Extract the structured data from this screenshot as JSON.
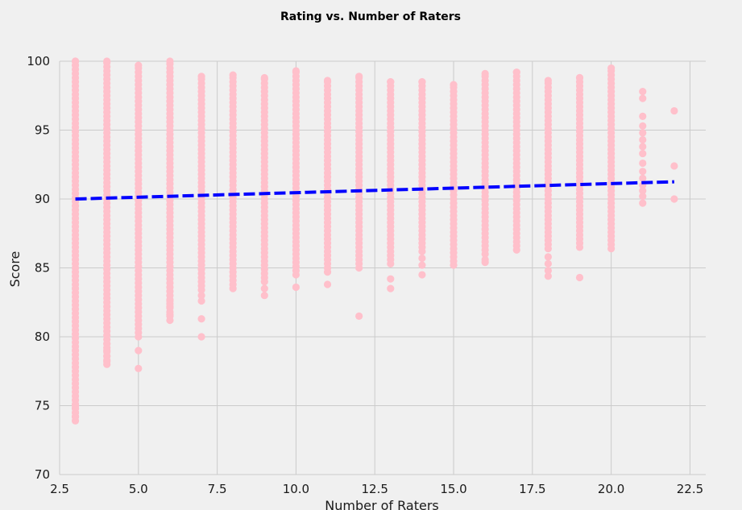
{
  "chart_data": {
    "type": "scatter",
    "title": "Rating vs. Number of Raters",
    "xlabel": "Number of Raters",
    "ylabel": "Score",
    "xlim": [
      2.5,
      23
    ],
    "ylim": [
      70,
      100
    ],
    "xticks": [
      "2.5",
      "5.0",
      "7.5",
      "10.0",
      "12.5",
      "15.0",
      "17.5",
      "20.0",
      "22.5"
    ],
    "yticks": [
      "70",
      "75",
      "80",
      "85",
      "90",
      "95",
      "100"
    ],
    "grid": true,
    "point_color": "#ffc0cb",
    "trend_color": "#0000ff",
    "scatter_columns": [
      {
        "x": 3,
        "min": 73.9,
        "max": 100,
        "outliers": [
          74.2,
          74.5,
          74.8,
          75.0
        ]
      },
      {
        "x": 4,
        "min": 78.0,
        "max": 100,
        "outliers": [
          78.2,
          78.6,
          79.0,
          79.5
        ]
      },
      {
        "x": 5,
        "min": 80.0,
        "max": 99.7,
        "outliers": [
          77.7,
          79.0
        ]
      },
      {
        "x": 6,
        "min": 81.2,
        "max": 100,
        "outliers": [
          81.6,
          82.2,
          82.6
        ]
      },
      {
        "x": 7,
        "min": 83.4,
        "max": 98.9,
        "outliers": [
          80.0,
          81.3,
          82.6,
          83.0
        ]
      },
      {
        "x": 8,
        "min": 83.5,
        "max": 99.0,
        "outliers": []
      },
      {
        "x": 9,
        "min": 84.0,
        "max": 98.8,
        "outliers": [
          83.0,
          83.5
        ]
      },
      {
        "x": 10,
        "min": 84.5,
        "max": 99.3,
        "outliers": [
          83.6
        ]
      },
      {
        "x": 11,
        "min": 85.0,
        "max": 98.6,
        "outliers": [
          83.8,
          84.7
        ]
      },
      {
        "x": 12,
        "min": 85.0,
        "max": 98.9,
        "outliers": [
          81.5
        ]
      },
      {
        "x": 13,
        "min": 85.3,
        "max": 98.5,
        "outliers": [
          83.5,
          84.2
        ]
      },
      {
        "x": 14,
        "min": 86.2,
        "max": 98.5,
        "outliers": [
          84.5,
          85.2,
          85.7
        ]
      },
      {
        "x": 15,
        "min": 85.2,
        "max": 98.3,
        "outliers": []
      },
      {
        "x": 16,
        "min": 86.0,
        "max": 99.1,
        "outliers": [
          85.4,
          85.6
        ]
      },
      {
        "x": 17,
        "min": 86.3,
        "max": 99.2,
        "outliers": []
      },
      {
        "x": 18,
        "min": 86.4,
        "max": 98.6,
        "outliers": [
          84.4,
          84.8,
          85.3,
          85.8
        ]
      },
      {
        "x": 19,
        "min": 86.5,
        "max": 98.8,
        "outliers": [
          84.3
        ]
      },
      {
        "x": 20,
        "min": 86.4,
        "max": 99.5,
        "outliers": []
      },
      {
        "x": 21,
        "min": 89.7,
        "max": 97.8,
        "outliers": [],
        "sparse": [
          89.7,
          90.2,
          90.6,
          91.0,
          91.5,
          92.0,
          92.6,
          93.3,
          93.8,
          94.3,
          94.8,
          95.3,
          96.0,
          97.3,
          97.8
        ]
      },
      {
        "x": 22,
        "min": 90.0,
        "max": 96.4,
        "outliers": [],
        "sparse": [
          90.0,
          92.4,
          96.4
        ]
      }
    ],
    "trend_line": {
      "x": [
        3,
        22
      ],
      "y": [
        90.0,
        91.25
      ]
    }
  }
}
